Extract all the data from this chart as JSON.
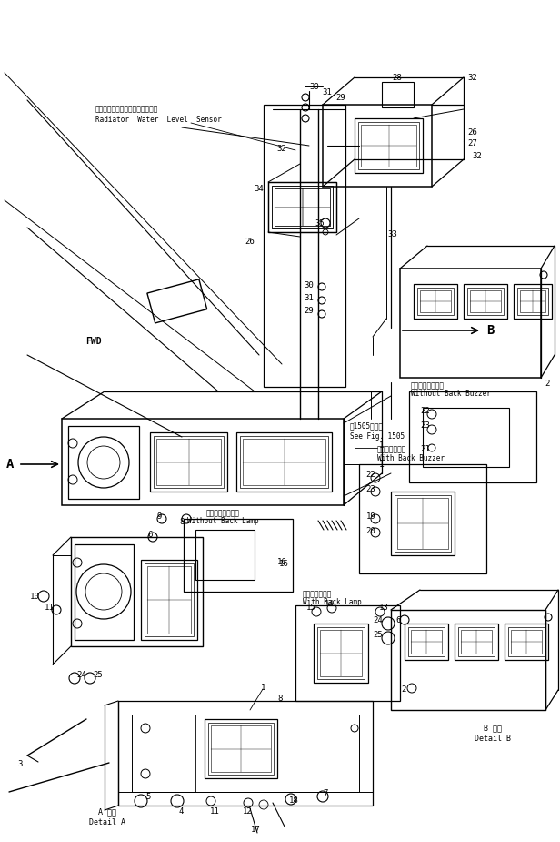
{
  "bg_color": "#ffffff",
  "line_color": "#000000",
  "fig_width": 6.16,
  "fig_height": 9.25,
  "dpi": 100,
  "texts": {
    "radiator_jp": "ラジエータウォータレベルセンサ",
    "radiator_en": "Radiator  Water  Level  Sensor",
    "fig1505_jp": "第1505図参照",
    "fig1505_en": "See Fig. 1505",
    "without_back_lamp_jp": "バックランプなし",
    "without_back_lamp_en": "Without Back Lamp",
    "with_back_buzzer_jp": "バックブザー付",
    "with_back_buzzer_en": "With Back Buzzer",
    "without_back_buzzer_jp": "バックブザーなし",
    "without_back_buzzer_en": "Without Back Buzzer",
    "with_back_lamp_jp": "バックランプ付",
    "with_back_lamp_en": "With Back Lamp",
    "detail_A_jp": "A 詳細",
    "detail_A_en": "Detail A",
    "detail_B_jp": "B 詳細",
    "detail_B_en": "Detail B",
    "fwd": "FWD",
    "B_label": "B",
    "A_label": "A"
  }
}
